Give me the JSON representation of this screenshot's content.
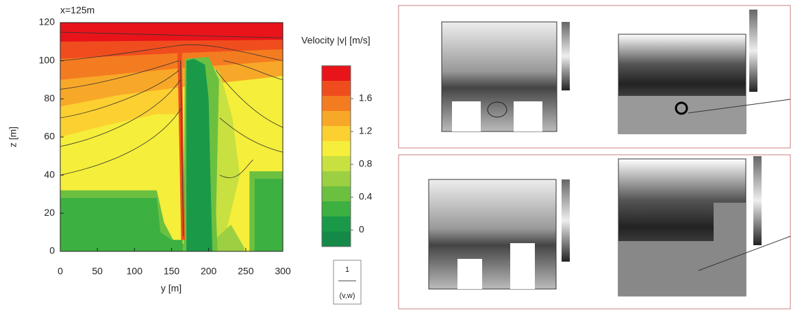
{
  "chart_data": {
    "type": "contour",
    "title": "x=125m",
    "xlabel": "y [m]",
    "ylabel": "z [m]",
    "xlim": [
      0,
      300
    ],
    "ylim": [
      0,
      120
    ],
    "xticks": [
      0,
      50,
      100,
      150,
      200,
      250,
      300
    ],
    "yticks": [
      0,
      20,
      40,
      60,
      80,
      100,
      120
    ],
    "colorbar": {
      "title": "Velocity |v| [m/s]",
      "lim": [
        -0.2,
        2.0
      ],
      "ticks": [
        0,
        0.4,
        0.8,
        1.2,
        1.6
      ],
      "colors": [
        "#158a48",
        "#1a9a48",
        "#3cb040",
        "#6cc040",
        "#9cd042",
        "#c8e040",
        "#f5ee3a",
        "#fbd030",
        "#f8a828",
        "#f47c20",
        "#f04d1e",
        "#e8141a"
      ]
    },
    "vector_key": {
      "value": 1,
      "label": "(v,w)"
    }
  }
}
